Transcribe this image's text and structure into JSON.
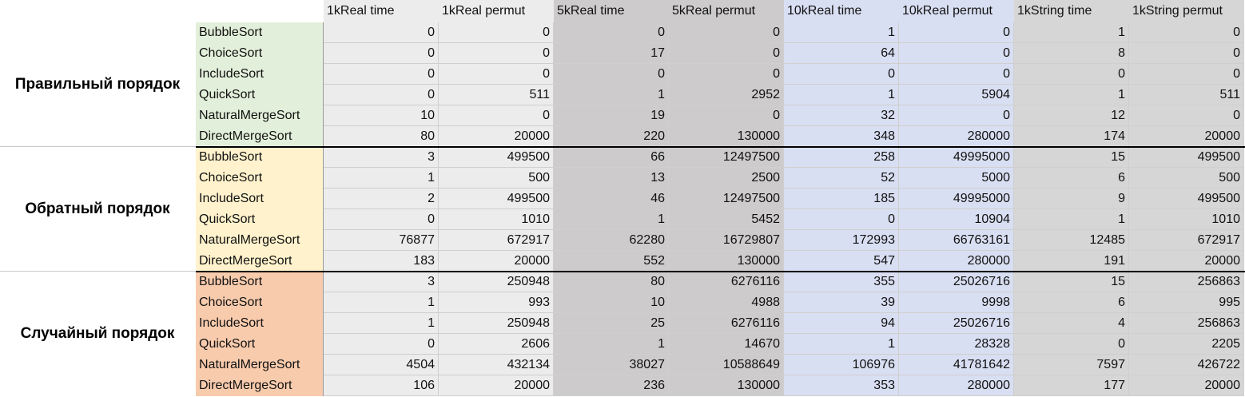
{
  "columns": [
    {
      "label": "1kReal time",
      "color": "#ececec"
    },
    {
      "label": "1kReal permut",
      "color": "#ececec"
    },
    {
      "label": "5kReal time",
      "color": "#cdcbcb"
    },
    {
      "label": "5kReal permut",
      "color": "#cdcbcb"
    },
    {
      "label": "10kReal time",
      "color": "#d9dff2"
    },
    {
      "label": "10kReal permut",
      "color": "#d9dff2"
    },
    {
      "label": "1kString time",
      "color": "#d6d6d6"
    },
    {
      "label": "1kString permut",
      "color": "#d6d6d6"
    }
  ],
  "groups": [
    {
      "label": "Правильный порядок",
      "color": "#e2efda",
      "rows": [
        {
          "name": "BubbleSort",
          "values": [
            "0",
            "0",
            "0",
            "0",
            "1",
            "0",
            "1",
            "0"
          ]
        },
        {
          "name": "ChoiceSort",
          "values": [
            "0",
            "0",
            "17",
            "0",
            "64",
            "0",
            "8",
            "0"
          ]
        },
        {
          "name": "IncludeSort",
          "values": [
            "0",
            "0",
            "0",
            "0",
            "0",
            "0",
            "0",
            "0"
          ]
        },
        {
          "name": "QuickSort",
          "values": [
            "0",
            "511",
            "1",
            "2952",
            "1",
            "5904",
            "1",
            "511"
          ]
        },
        {
          "name": "NaturalMergeSort",
          "values": [
            "10",
            "0",
            "19",
            "0",
            "32",
            "0",
            "12",
            "0"
          ]
        },
        {
          "name": "DirectMergeSort",
          "values": [
            "80",
            "20000",
            "220",
            "130000",
            "348",
            "280000",
            "174",
            "20000"
          ]
        }
      ]
    },
    {
      "label": "Обратный порядок",
      "color": "#fff2cc",
      "rows": [
        {
          "name": "BubbleSort",
          "values": [
            "3",
            "499500",
            "66",
            "12497500",
            "258",
            "49995000",
            "15",
            "499500"
          ]
        },
        {
          "name": "ChoiceSort",
          "values": [
            "1",
            "500",
            "13",
            "2500",
            "52",
            "5000",
            "6",
            "500"
          ]
        },
        {
          "name": "IncludeSort",
          "values": [
            "2",
            "499500",
            "46",
            "12497500",
            "185",
            "49995000",
            "9",
            "499500"
          ]
        },
        {
          "name": "QuickSort",
          "values": [
            "0",
            "1010",
            "1",
            "5452",
            "0",
            "10904",
            "1",
            "1010"
          ]
        },
        {
          "name": "NaturalMergeSort",
          "values": [
            "76877",
            "672917",
            "62280",
            "16729807",
            "172993",
            "66763161",
            "12485",
            "672917"
          ]
        },
        {
          "name": "DirectMergeSort",
          "values": [
            "183",
            "20000",
            "552",
            "130000",
            "547",
            "280000",
            "191",
            "20000"
          ]
        }
      ]
    },
    {
      "label": "Случайный порядок",
      "color": "#f8cbad",
      "rows": [
        {
          "name": "BubbleSort",
          "values": [
            "3",
            "250948",
            "80",
            "6276116",
            "355",
            "25026716",
            "15",
            "256863"
          ]
        },
        {
          "name": "ChoiceSort",
          "values": [
            "1",
            "993",
            "10",
            "4988",
            "39",
            "9998",
            "6",
            "995"
          ]
        },
        {
          "name": "IncludeSort",
          "values": [
            "1",
            "250948",
            "25",
            "6276116",
            "94",
            "25026716",
            "4",
            "256863"
          ]
        },
        {
          "name": "QuickSort",
          "values": [
            "0",
            "2606",
            "1",
            "14670",
            "1",
            "28328",
            "0",
            "2205"
          ]
        },
        {
          "name": "NaturalMergeSort",
          "values": [
            "4504",
            "432134",
            "38027",
            "10588649",
            "106976",
            "41781642",
            "7597",
            "426722"
          ]
        },
        {
          "name": "DirectMergeSort",
          "values": [
            "106",
            "20000",
            "236",
            "130000",
            "353",
            "280000",
            "177",
            "20000"
          ]
        }
      ]
    }
  ]
}
